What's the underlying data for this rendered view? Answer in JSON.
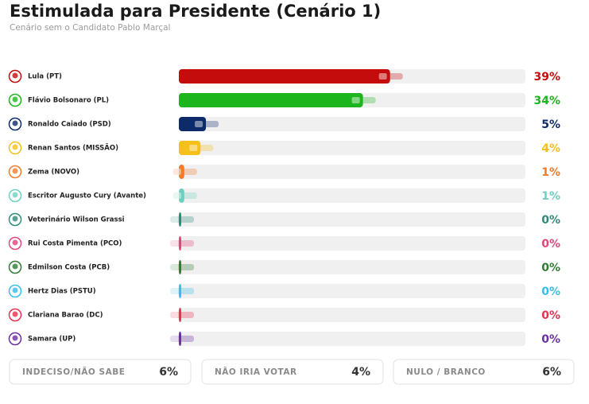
{
  "chart_data": {
    "type": "bar",
    "title": "Estimulada para Presidente (Cenário 1)",
    "subtitle": "Cenário sem o Candidato Pablo Marçal",
    "categories": [
      "Lula (PT)",
      "Flávio Bolsonaro (PL)",
      "Ronaldo Caiado (PSD)",
      "Renan Santos (MISSÃO)",
      "Zema (NOVO)",
      "Escritor Augusto Cury (Avante)",
      "Veterinário Wilson Grassi",
      "Rui Costa Pimenta (PCO)",
      "Edmilson Costa (PCB)",
      "Hertz Dias (PSTU)",
      "Clariana Barao (DC)",
      "Samara (UP)"
    ],
    "values": [
      39,
      34,
      5,
      4,
      1,
      1,
      0,
      0,
      0,
      0,
      0,
      0
    ],
    "value_labels": [
      "39%",
      "34%",
      "5%",
      "4%",
      "1%",
      "1%",
      "0%",
      "0%",
      "0%",
      "0%",
      "0%",
      "0%"
    ],
    "colors": [
      "#c40c0c",
      "#1db51d",
      "#0d2a6b",
      "#f5c01a",
      "#f07c2a",
      "#6fcfc0",
      "#2f8a7a",
      "#e0457b",
      "#2e7d32",
      "#38bde8",
      "#e8304f",
      "#6a2fa0"
    ],
    "xlim": [
      0,
      64
    ],
    "summary": [
      {
        "label": "INDECISO/NÃO SABE",
        "value": "6%"
      },
      {
        "label": "NÃO IRIA VOTAR",
        "value": "4%"
      },
      {
        "label": "NULO / BRANCO",
        "value": "6%"
      }
    ]
  }
}
